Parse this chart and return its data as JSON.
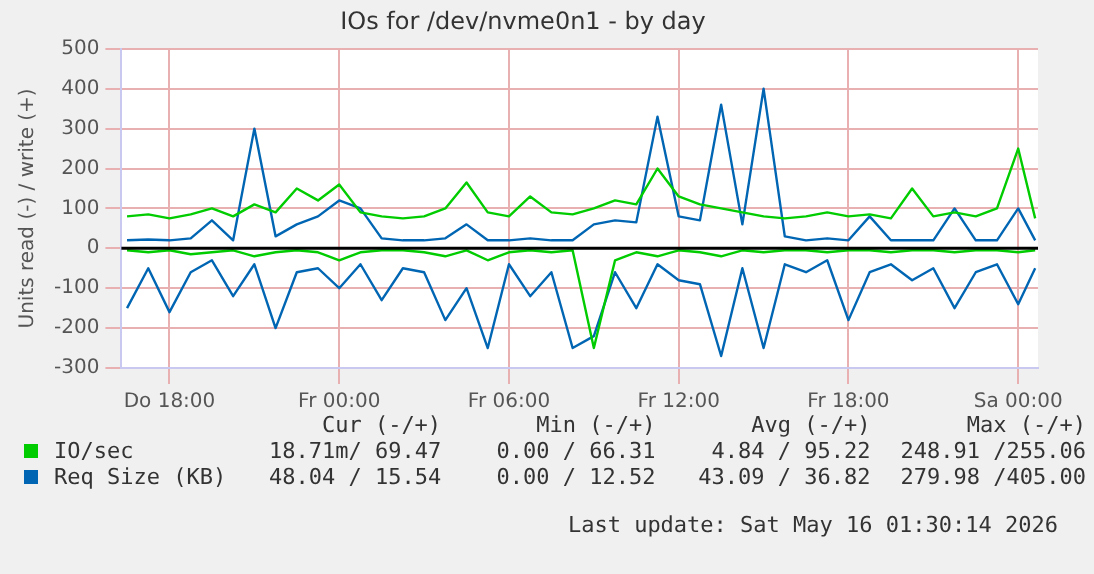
{
  "chart_data": {
    "type": "line",
    "title": "IOs for /dev/nvme0n1 - by day",
    "ylabel": "Units read (-) / write (+)",
    "x": [
      "2026-05-14T16:30",
      "2026-05-14T17:15",
      "2026-05-14T18:00",
      "2026-05-14T18:45",
      "2026-05-14T19:30",
      "2026-05-14T20:15",
      "2026-05-14T21:00",
      "2026-05-14T21:45",
      "2026-05-14T22:30",
      "2026-05-14T23:15",
      "2026-05-15T00:00",
      "2026-05-15T00:45",
      "2026-05-15T01:30",
      "2026-05-15T02:15",
      "2026-05-15T03:00",
      "2026-05-15T03:45",
      "2026-05-15T04:30",
      "2026-05-15T05:15",
      "2026-05-15T06:00",
      "2026-05-15T06:45",
      "2026-05-15T07:30",
      "2026-05-15T08:15",
      "2026-05-15T09:00",
      "2026-05-15T09:45",
      "2026-05-15T10:30",
      "2026-05-15T11:15",
      "2026-05-15T12:00",
      "2026-05-15T12:45",
      "2026-05-15T13:30",
      "2026-05-15T14:15",
      "2026-05-15T15:00",
      "2026-05-15T15:45",
      "2026-05-15T16:30",
      "2026-05-15T17:15",
      "2026-05-15T18:00",
      "2026-05-15T18:45",
      "2026-05-15T19:30",
      "2026-05-15T20:15",
      "2026-05-15T21:00",
      "2026-05-15T21:45",
      "2026-05-15T22:30",
      "2026-05-15T23:15",
      "2026-05-16T00:00",
      "2026-05-16T00:36"
    ],
    "xlim": [
      "2026-05-14T16:18",
      "2026-05-16T00:42"
    ],
    "xticks": [
      {
        "value": "2026-05-14T18:00",
        "label": "Do 18:00"
      },
      {
        "value": "2026-05-15T00:00",
        "label": "Fr 00:00"
      },
      {
        "value": "2026-05-15T06:00",
        "label": "Fr 06:00"
      },
      {
        "value": "2026-05-15T12:00",
        "label": "Fr 12:00"
      },
      {
        "value": "2026-05-15T18:00",
        "label": "Fr 18:00"
      },
      {
        "value": "2026-05-16T00:00",
        "label": "Sa 00:00"
      }
    ],
    "ylim": [
      -300,
      500
    ],
    "yticks": [
      -300,
      -200,
      -100,
      0,
      100,
      200,
      300,
      400,
      500
    ],
    "grid": true,
    "legend": "bottom",
    "series": [
      {
        "color": "#00cc00",
        "values": [
          -5,
          -10,
          -5,
          -15,
          -10,
          -5,
          -20,
          -10,
          -5,
          -10,
          -30,
          -10,
          -5,
          -5,
          -10,
          -20,
          -5,
          -30,
          -10,
          -5,
          -10,
          -5,
          -250,
          -30,
          -10,
          -20,
          -5,
          -10,
          -20,
          -5,
          -10,
          -5,
          -5,
          -10,
          -5,
          -5,
          -10,
          -5,
          -5,
          -10,
          -5,
          -5,
          -10,
          -5
        ]
      },
      {
        "name": "IO/sec",
        "color": "#00cc00",
        "values": [
          80,
          85,
          75,
          85,
          100,
          80,
          110,
          90,
          150,
          120,
          160,
          90,
          80,
          75,
          80,
          100,
          165,
          90,
          80,
          130,
          90,
          85,
          100,
          120,
          110,
          200,
          130,
          110,
          100,
          90,
          80,
          75,
          80,
          90,
          80,
          85,
          75,
          150,
          80,
          90,
          80,
          100,
          250,
          75
        ]
      },
      {
        "color": "#0066b3",
        "values": [
          -150,
          -50,
          -160,
          -60,
          -30,
          -120,
          -40,
          -200,
          -60,
          -50,
          -100,
          -40,
          -130,
          -50,
          -60,
          -180,
          -100,
          -250,
          -40,
          -120,
          -60,
          -250,
          -220,
          -60,
          -150,
          -40,
          -80,
          -90,
          -270,
          -50,
          -250,
          -40,
          -60,
          -30,
          -180,
          -60,
          -40,
          -80,
          -50,
          -150,
          -60,
          -40,
          -140,
          -50
        ]
      },
      {
        "name": "Req Size (KB)",
        "color": "#0066b3",
        "values": [
          20,
          22,
          20,
          25,
          70,
          20,
          300,
          30,
          60,
          80,
          120,
          100,
          25,
          20,
          20,
          25,
          60,
          20,
          20,
          25,
          20,
          20,
          60,
          70,
          65,
          330,
          80,
          70,
          360,
          60,
          400,
          30,
          20,
          25,
          20,
          80,
          20,
          20,
          20,
          100,
          20,
          20,
          100,
          20
        ]
      }
    ],
    "ref_lines": [
      {
        "axis": "y",
        "value": 0,
        "color": "#000000"
      }
    ],
    "annotations": [
      "Cur (-/+)",
      "Min (-/+)",
      "Avg (-/+)",
      "Max (-/+)",
      "18.71m/ 69.47",
      "0.00 / 66.31",
      "4.84 / 95.22",
      "248.91 /255.06",
      "48.04 / 15.54",
      "0.00 / 12.52",
      "43.09 / 36.82",
      "279.98 /405.00",
      "Last update: Sat May 16 01:30:14 2026"
    ]
  }
}
